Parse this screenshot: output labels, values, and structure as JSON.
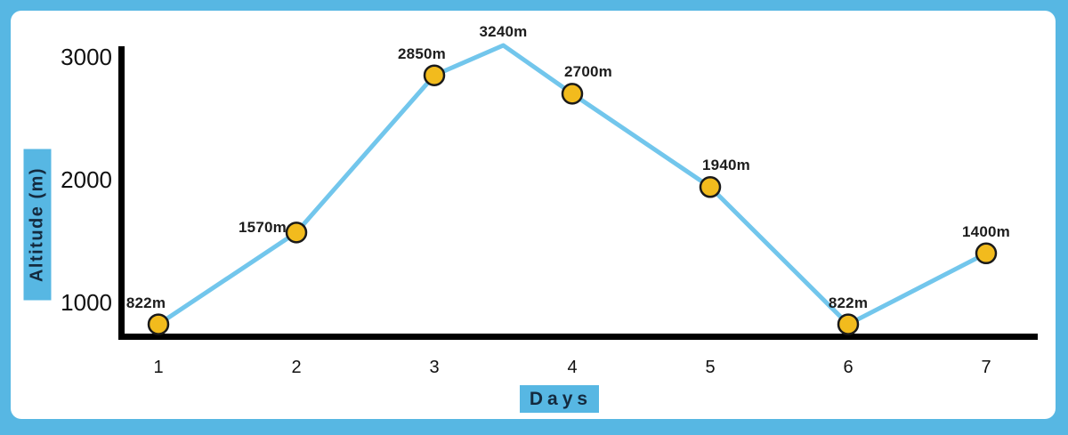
{
  "chart_data": {
    "type": "line",
    "title": "",
    "xlabel": "Days",
    "ylabel": "Altitude (m)",
    "x_ticks": [
      "1",
      "2",
      "3",
      "4",
      "5",
      "6",
      "7"
    ],
    "y_ticks": [
      1000,
      2000,
      3000
    ],
    "xlim": [
      1,
      7
    ],
    "ylim": [
      800,
      3300
    ],
    "grid": false,
    "legend": "none",
    "points": [
      {
        "day": 1,
        "altitude_m": 822,
        "label": "822m",
        "marker": true,
        "label_pos": "above-left"
      },
      {
        "day": 2,
        "altitude_m": 1570,
        "label": "1570m",
        "marker": true,
        "label_pos": "left"
      },
      {
        "day": 3,
        "altitude_m": 2850,
        "label": "2850m",
        "marker": true,
        "label_pos": "above-left"
      },
      {
        "day": 3.5,
        "altitude_m": 3240,
        "label": "3240m",
        "marker": false,
        "label_pos": "above"
      },
      {
        "day": 4,
        "altitude_m": 2700,
        "label": "2700m",
        "marker": true,
        "label_pos": "above-right"
      },
      {
        "day": 5,
        "altitude_m": 1940,
        "label": "1940m",
        "marker": true,
        "label_pos": "above-right"
      },
      {
        "day": 6,
        "altitude_m": 822,
        "label": "822m",
        "marker": true,
        "label_pos": "above"
      },
      {
        "day": 7,
        "altitude_m": 1400,
        "label": "1400m",
        "marker": true,
        "label_pos": "above"
      }
    ],
    "colors": {
      "frame": "#57B7E3",
      "panel": "#FFFFFF",
      "line": "#72C6EC",
      "marker_fill": "#F2BB1D",
      "marker_stroke": "#1A1A1A",
      "axis": "#000000",
      "axis_chip_bg": "#57B7E3",
      "axis_chip_text": "#142A3E",
      "tick_text": "#111111",
      "point_label_text": "#1D1D1D"
    }
  }
}
